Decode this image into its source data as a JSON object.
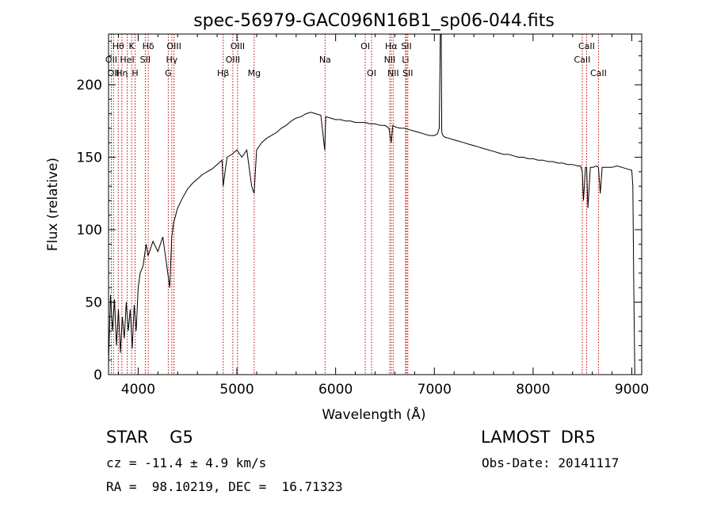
{
  "chart_data": {
    "type": "line",
    "title": "spec-56979-GAC096N16B1_sp06-044.fits",
    "xlabel": "Wavelength (Å)",
    "ylabel": "Flux (relative)",
    "xlim": [
      3700,
      9100
    ],
    "ylim": [
      0,
      235
    ],
    "x_ticks": [
      4000,
      5000,
      6000,
      7000,
      8000,
      9000
    ],
    "y_ticks": [
      0,
      50,
      100,
      150,
      200
    ],
    "grid": false,
    "series": [
      {
        "x": [
          3700,
          3720,
          3740,
          3760,
          3780,
          3800,
          3820,
          3840,
          3860,
          3880,
          3900,
          3920,
          3940,
          3960,
          3980,
          4000,
          4020,
          4050,
          4080,
          4100,
          4150,
          4200,
          4250,
          4300,
          4320,
          4340,
          4360,
          4400,
          4450,
          4500,
          4550,
          4600,
          4650,
          4700,
          4750,
          4800,
          4850,
          4861,
          4900,
          4950,
          5000,
          5050,
          5100,
          5150,
          5175,
          5200,
          5250,
          5300,
          5350,
          5400,
          5450,
          5500,
          5550,
          5600,
          5650,
          5700,
          5750,
          5800,
          5850,
          5890,
          5900,
          5950,
          6000,
          6050,
          6100,
          6150,
          6200,
          6250,
          6300,
          6350,
          6400,
          6450,
          6500,
          6540,
          6563,
          6580,
          6600,
          6650,
          6700,
          6750,
          6800,
          6850,
          6900,
          6950,
          7000,
          7030,
          7050,
          7060,
          7070,
          7075,
          7080,
          7090,
          7100,
          7150,
          7200,
          7250,
          7300,
          7350,
          7400,
          7450,
          7500,
          7550,
          7600,
          7650,
          7700,
          7750,
          7800,
          7850,
          7900,
          7950,
          8000,
          8050,
          8100,
          8150,
          8200,
          8250,
          8300,
          8350,
          8400,
          8450,
          8480,
          8498,
          8510,
          8530,
          8542,
          8555,
          8580,
          8610,
          8640,
          8662,
          8680,
          8700,
          8750,
          8800,
          8850,
          8900,
          8950,
          9000,
          9010,
          9020,
          9030
        ],
        "y": [
          8,
          55,
          30,
          52,
          20,
          45,
          15,
          40,
          25,
          50,
          30,
          45,
          18,
          48,
          30,
          60,
          70,
          75,
          90,
          82,
          92,
          85,
          95,
          70,
          60,
          95,
          105,
          115,
          122,
          128,
          132,
          135,
          138,
          140,
          142,
          145,
          148,
          130,
          150,
          152,
          155,
          150,
          155,
          130,
          125,
          155,
          160,
          163,
          165,
          167,
          170,
          172,
          175,
          177,
          178,
          180,
          181,
          180,
          179,
          155,
          178,
          177,
          176,
          176,
          175,
          175,
          174,
          174,
          174,
          173,
          173,
          172,
          172,
          170,
          160,
          172,
          171,
          170,
          170,
          169,
          168,
          167,
          166,
          165,
          165,
          166,
          170,
          235,
          235,
          168,
          166,
          165,
          164,
          163,
          162,
          161,
          160,
          159,
          158,
          157,
          156,
          155,
          154,
          153,
          152,
          152,
          151,
          150,
          150,
          149,
          149,
          148,
          148,
          147,
          147,
          146,
          146,
          145,
          145,
          144,
          144,
          140,
          120,
          143,
          143,
          115,
          143,
          143,
          144,
          143,
          125,
          143,
          143,
          143,
          144,
          143,
          142,
          141,
          130,
          60,
          0
        ]
      }
    ],
    "lines": [
      {
        "w": 3728,
        "label": "OII",
        "row": 1
      },
      {
        "w": 3750,
        "label": "OII",
        "row": 2
      },
      {
        "w": 3798,
        "label": "Hθ",
        "row": 0
      },
      {
        "w": 3835,
        "label": "Hη",
        "row": 2
      },
      {
        "w": 3889,
        "label": "HeI",
        "row": 1
      },
      {
        "w": 3934,
        "label": "K",
        "row": 0
      },
      {
        "w": 3969,
        "label": "H",
        "row": 2
      },
      {
        "w": 4072,
        "label": "SII",
        "row": 1
      },
      {
        "w": 4102,
        "label": "Hδ",
        "row": 0
      },
      {
        "w": 4305,
        "label": "G",
        "row": 2
      },
      {
        "w": 4341,
        "label": "Hγ",
        "row": 1
      },
      {
        "w": 4363,
        "label": "OIII",
        "row": 0
      },
      {
        "w": 4861,
        "label": "Hβ",
        "row": 2
      },
      {
        "w": 4959,
        "label": "OIII",
        "row": 1
      },
      {
        "w": 5007,
        "label": "OIII",
        "row": 0
      },
      {
        "w": 5175,
        "label": "Mg",
        "row": 2
      },
      {
        "w": 5893,
        "label": "Na",
        "row": 1
      },
      {
        "w": 6300,
        "label": "OI",
        "row": 0
      },
      {
        "w": 6364,
        "label": "OI",
        "row": 2
      },
      {
        "w": 6548,
        "label": "NII",
        "row": 1
      },
      {
        "w": 6563,
        "label": "Hα",
        "row": 0
      },
      {
        "w": 6583,
        "label": "NII",
        "row": 2
      },
      {
        "w": 6708,
        "label": "Li",
        "row": 1
      },
      {
        "w": 6717,
        "label": "SII",
        "row": 0
      },
      {
        "w": 6731,
        "label": "SII",
        "row": 2
      },
      {
        "w": 8498,
        "label": "CaII",
        "row": 1
      },
      {
        "w": 8542,
        "label": "CaII",
        "row": 0
      },
      {
        "w": 8662,
        "label": "CaII",
        "row": 2
      }
    ]
  },
  "info": {
    "class": "STAR    G5",
    "survey": "LAMOST  DR5",
    "cz": "cz = -11.4 ± 4.9 km/s",
    "obs_date": "Obs-Date: 20141117",
    "coords": "RA =  98.10219, DEC =  16.71323"
  },
  "colors": {
    "line_markers": "#c00000",
    "spectrum": "#000000"
  }
}
